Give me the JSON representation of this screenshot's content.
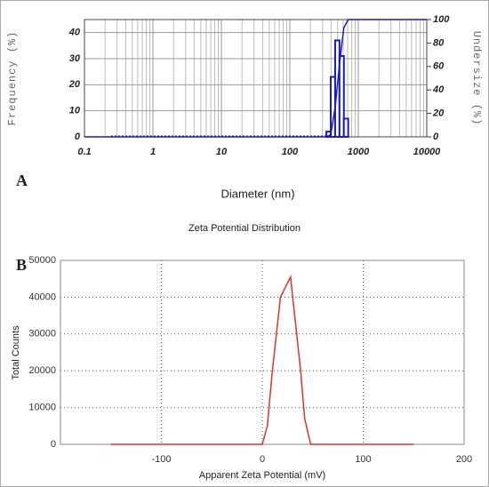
{
  "chart_data": [
    {
      "type": "histogram",
      "annotation": "A",
      "x_label": "Diameter (nm)",
      "y_label": "Frequency (%)",
      "y2_label": "Undersize (%)",
      "log_x": true,
      "xlim": [
        0.1,
        10000
      ],
      "xticks": [
        0.1,
        1,
        10,
        100,
        1000,
        10000
      ],
      "ylim": [
        0,
        45
      ],
      "yticks": [
        0,
        10,
        20,
        30,
        40
      ],
      "y2lim": [
        0,
        100
      ],
      "y2ticks": [
        0,
        20,
        40,
        60,
        80,
        100
      ],
      "grid": true,
      "color": "#1a1ac8",
      "bins": [
        342,
        396,
        459,
        531,
        615,
        712
      ],
      "counts": [
        2,
        23,
        37,
        31,
        7
      ],
      "series": [
        {
          "color": "#1a1ac8",
          "axis": "y2",
          "x": [
            0.1,
            342,
            396,
            459,
            531,
            615,
            712,
            10000
          ],
          "values": [
            0,
            0,
            2,
            25,
            62,
            93,
            100,
            100
          ]
        }
      ]
    },
    {
      "type": "line",
      "title": "Zeta Potential Distribution",
      "annotation": "B",
      "x_label": "Apparent Zeta Potential (mV)",
      "y_label": "Total Counts",
      "xlim": [
        -200,
        200
      ],
      "xticks": [
        -100,
        0,
        100,
        200
      ],
      "ylim": [
        0,
        50000
      ],
      "yticks": [
        0,
        10000,
        20000,
        30000,
        40000,
        50000
      ],
      "grid": true,
      "series": [
        {
          "color": "#e03030",
          "x": [
            -150,
            0,
            5,
            10,
            18,
            28,
            38,
            42,
            48,
            150
          ],
          "values": [
            0,
            0,
            5000,
            20000,
            40000,
            45500,
            20000,
            7000,
            0,
            0
          ]
        }
      ]
    }
  ]
}
